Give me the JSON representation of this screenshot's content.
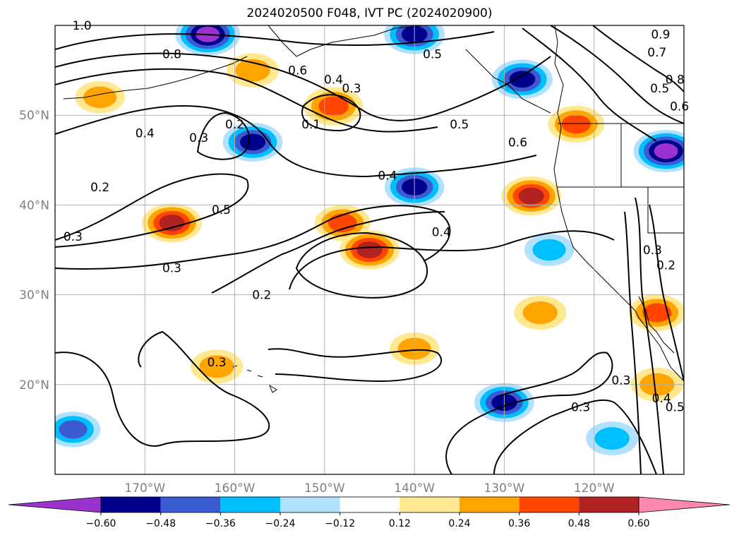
{
  "title": "2024020500 F048, IVT PC (2024020900)",
  "colors": {
    "ocean": "#ffffff",
    "grid": "#b0b0b0",
    "coast": "#000000",
    "contour": "#000000"
  },
  "chart_data": {
    "type": "heatmap",
    "title": "2024020500 F048, IVT PC (2024020900)",
    "xlabel": "",
    "ylabel": "",
    "xlim": [
      -180,
      -110
    ],
    "ylim": [
      10,
      60
    ],
    "x_ticks": [
      {
        "value": -170,
        "label": "170°W"
      },
      {
        "value": -160,
        "label": "160°W"
      },
      {
        "value": -150,
        "label": "150°W"
      },
      {
        "value": -140,
        "label": "140°W"
      },
      {
        "value": -130,
        "label": "130°W"
      },
      {
        "value": -120,
        "label": "120°W"
      }
    ],
    "y_ticks": [
      {
        "value": 20,
        "label": "20°N"
      },
      {
        "value": 30,
        "label": "30°N"
      },
      {
        "value": 40,
        "label": "40°N"
      },
      {
        "value": 50,
        "label": "50°N"
      }
    ],
    "grid": true,
    "colorbar": {
      "levels": [
        -0.6,
        -0.48,
        -0.36,
        -0.24,
        -0.12,
        0.12,
        0.24,
        0.36,
        0.48,
        0.6
      ],
      "tick_labels": [
        "−0.60",
        "−0.48",
        "−0.36",
        "−0.24",
        "−0.12",
        "0.12",
        "0.24",
        "0.36",
        "0.48",
        "0.60"
      ],
      "colors": [
        "#9a32cd",
        "#00008b",
        "#3a5bd1",
        "#00bfff",
        "#b0e2ff",
        "#ffffff",
        "#ffe88f",
        "#ffa500",
        "#ff4500",
        "#b22222",
        "#ff88b0"
      ],
      "extend": "both"
    },
    "shaded_areas": [
      {
        "lon": -148,
        "lat": 38,
        "value": 0.38
      },
      {
        "lon": -145,
        "lat": 35,
        "value": 0.49
      },
      {
        "lon": -167,
        "lat": 38,
        "value": 0.48
      },
      {
        "lon": -149,
        "lat": 51,
        "value": 0.46
      },
      {
        "lon": -158,
        "lat": 55,
        "value": 0.3
      },
      {
        "lon": -127,
        "lat": 41,
        "value": 0.48
      },
      {
        "lon": -122,
        "lat": 49,
        "value": 0.4
      },
      {
        "lon": -158,
        "lat": 47,
        "value": -0.48
      },
      {
        "lon": -140,
        "lat": 42,
        "value": -0.48
      },
      {
        "lon": -128,
        "lat": 54,
        "value": -0.5
      },
      {
        "lon": -112,
        "lat": 46,
        "value": -0.6
      },
      {
        "lon": -140,
        "lat": 59,
        "value": -0.5
      },
      {
        "lon": -163,
        "lat": 59,
        "value": -0.6
      },
      {
        "lon": -130,
        "lat": 18,
        "value": -0.48
      },
      {
        "lon": -126,
        "lat": 28,
        "value": 0.3
      },
      {
        "lon": -113,
        "lat": 28,
        "value": 0.4
      },
      {
        "lon": -113,
        "lat": 20,
        "value": 0.3
      },
      {
        "lon": -140,
        "lat": 24,
        "value": 0.24
      },
      {
        "lon": -162,
        "lat": 22,
        "value": 0.3
      },
      {
        "lon": -178,
        "lat": 15,
        "value": -0.36
      },
      {
        "lon": -175,
        "lat": 52,
        "value": 0.24
      },
      {
        "lon": -118,
        "lat": 14,
        "value": -0.3
      },
      {
        "lon": -125,
        "lat": 35,
        "value": -0.24
      }
    ],
    "contour_labels": [
      {
        "lon": -177,
        "lat": 60,
        "text": "1.0"
      },
      {
        "lon": -167,
        "lat": 56.8,
        "text": "0.8"
      },
      {
        "lon": -153,
        "lat": 55,
        "text": "0.6"
      },
      {
        "lon": -149,
        "lat": 54,
        "text": "0.4"
      },
      {
        "lon": -147,
        "lat": 53,
        "text": "0.3"
      },
      {
        "lon": -138,
        "lat": 56.8,
        "text": "0.5"
      },
      {
        "lon": -170,
        "lat": 48,
        "text": "0.4"
      },
      {
        "lon": -160,
        "lat": 49,
        "text": "0.2"
      },
      {
        "lon": -164,
        "lat": 47.5,
        "text": "0.3"
      },
      {
        "lon": -151.5,
        "lat": 49,
        "text": "0.1"
      },
      {
        "lon": -135,
        "lat": 49,
        "text": "0.5"
      },
      {
        "lon": -128.5,
        "lat": 47,
        "text": "0.6"
      },
      {
        "lon": -143,
        "lat": 43.3,
        "text": "0.4"
      },
      {
        "lon": -178,
        "lat": 36.5,
        "text": "0.3"
      },
      {
        "lon": -175,
        "lat": 42,
        "text": "0.2"
      },
      {
        "lon": -161.5,
        "lat": 39.5,
        "text": "0.5"
      },
      {
        "lon": -167,
        "lat": 33,
        "text": "0.3"
      },
      {
        "lon": -157,
        "lat": 30,
        "text": "0.2"
      },
      {
        "lon": -162,
        "lat": 22.5,
        "text": "0.3"
      },
      {
        "lon": -117,
        "lat": 20.5,
        "text": "0.3"
      },
      {
        "lon": -121.5,
        "lat": 17.5,
        "text": "0.3"
      },
      {
        "lon": -112.5,
        "lat": 18.5,
        "text": "0.4"
      },
      {
        "lon": -111,
        "lat": 17.5,
        "text": "0.5"
      },
      {
        "lon": -112,
        "lat": 33.3,
        "text": "0.2"
      },
      {
        "lon": -113.5,
        "lat": 35,
        "text": "0.3"
      },
      {
        "lon": -137,
        "lat": 37,
        "text": "0.4"
      },
      {
        "lon": -113,
        "lat": 57,
        "text": "0.7"
      },
      {
        "lon": -111,
        "lat": 54,
        "text": "0.8"
      },
      {
        "lon": -112.7,
        "lat": 53,
        "text": "0.5"
      },
      {
        "lon": -110.5,
        "lat": 51,
        "text": "0.6"
      },
      {
        "lon": -112.6,
        "lat": 59,
        "text": "0.9"
      }
    ]
  }
}
